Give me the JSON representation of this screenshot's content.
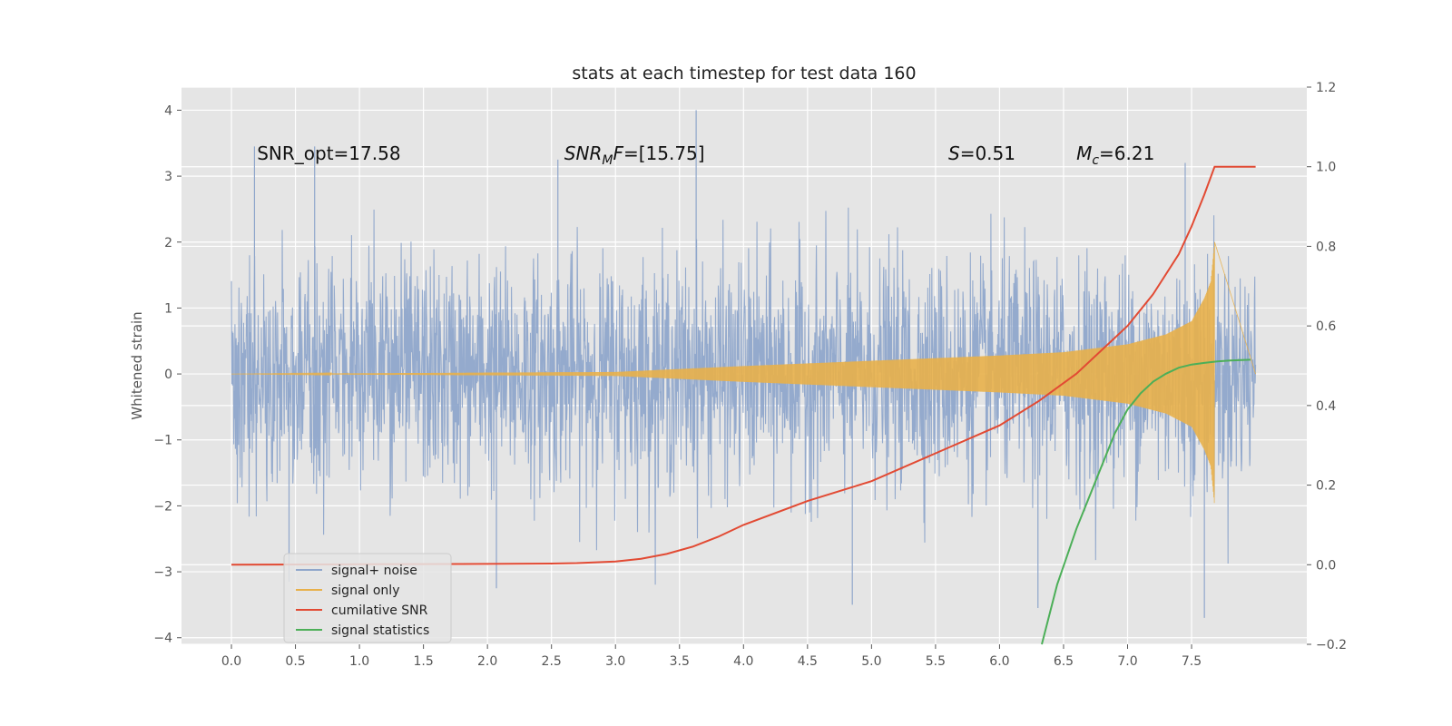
{
  "chart_data": {
    "type": "line",
    "title": "stats at each timestep for test data 160",
    "xlabel": "",
    "ylabel": "Whitened strain",
    "y2label": "",
    "xlim": [
      -0.39,
      8.4
    ],
    "ylim": [
      -4.1,
      4.35
    ],
    "y2lim": [
      -0.2,
      1.2
    ],
    "xticks": [
      0.0,
      0.5,
      1.0,
      1.5,
      2.0,
      2.5,
      3.0,
      3.5,
      4.0,
      4.5,
      5.0,
      5.5,
      6.0,
      6.5,
      7.0,
      7.5
    ],
    "yticks": [
      -4,
      -3,
      -2,
      -1,
      0,
      1,
      2,
      3,
      4
    ],
    "y2ticks": [
      -0.2,
      0.0,
      0.2,
      0.4,
      0.6,
      0.8,
      1.0,
      1.2
    ],
    "grid": true,
    "legend_position": "lower-left",
    "annotations": [
      {
        "text": "SNR_opt=17.58",
        "x": 0.2,
        "y": 3.25
      },
      {
        "text": "SNR_MF=[15.75]",
        "main": "SNR",
        "sub": "M",
        "tail": "F=[15.75]",
        "x": 2.6,
        "y": 3.25
      },
      {
        "text": "S=0.51",
        "main": "S",
        "tail": "=0.51",
        "x": 5.6,
        "y": 3.25
      },
      {
        "text": "M_c=6.21",
        "main": "M",
        "sub": "c",
        "tail": "=6.21",
        "x": 6.6,
        "y": 3.25
      }
    ],
    "series": [
      {
        "name": "signal+ noise",
        "axis": "left",
        "color": "#8fa6cb",
        "kind": "noise",
        "x_range": [
          0.0,
          8.0
        ],
        "sigma": 1.0,
        "peak_max": 4.0,
        "peak_min": -3.5
      },
      {
        "name": "signal only",
        "axis": "left",
        "color": "#e8b04a",
        "kind": "chirp",
        "x_range": [
          0.0,
          7.68
        ],
        "envelope": {
          "x": [
            0.0,
            3.0,
            4.0,
            5.0,
            6.0,
            6.5,
            7.0,
            7.3,
            7.5,
            7.6,
            7.65,
            7.68
          ],
          "y": [
            0.0,
            0.03,
            0.12,
            0.2,
            0.28,
            0.33,
            0.45,
            0.6,
            0.8,
            1.15,
            1.4,
            2.0
          ]
        }
      },
      {
        "name": "cumilative SNR",
        "axis": "right",
        "color": "#e24a33",
        "x": [
          0.0,
          1.0,
          2.0,
          2.5,
          2.7,
          3.0,
          3.2,
          3.4,
          3.6,
          3.8,
          4.0,
          4.5,
          5.0,
          5.5,
          6.0,
          6.3,
          6.6,
          6.8,
          7.0,
          7.2,
          7.4,
          7.5,
          7.6,
          7.68,
          8.0
        ],
        "y": [
          0.0,
          0.001,
          0.002,
          0.003,
          0.004,
          0.008,
          0.015,
          0.027,
          0.045,
          0.07,
          0.1,
          0.16,
          0.21,
          0.28,
          0.35,
          0.41,
          0.48,
          0.54,
          0.6,
          0.68,
          0.78,
          0.85,
          0.93,
          1.0,
          1.0
        ]
      },
      {
        "name": "signal statistics",
        "axis": "right",
        "color": "#4caf58",
        "x": [
          6.33,
          6.45,
          6.6,
          6.7,
          6.8,
          6.9,
          7.0,
          7.1,
          7.2,
          7.3,
          7.4,
          7.5,
          7.6,
          7.7,
          7.8,
          7.96
        ],
        "y": [
          -0.2,
          -0.05,
          0.09,
          0.17,
          0.25,
          0.33,
          0.39,
          0.43,
          0.46,
          0.48,
          0.495,
          0.503,
          0.507,
          0.511,
          0.513,
          0.515
        ]
      }
    ]
  }
}
